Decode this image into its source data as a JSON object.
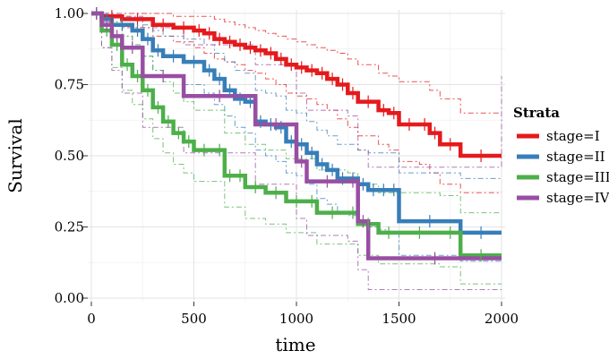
{
  "chart_data": {
    "type": "line",
    "xlabel": "time",
    "ylabel": "Survival",
    "xlim": [
      0,
      2000
    ],
    "ylim": [
      0,
      1
    ],
    "x_ticks": [
      "0",
      "500",
      "1000",
      "1500",
      "2000"
    ],
    "y_ticks": [
      "0.00",
      "0.25",
      "0.50",
      "0.75",
      "1.00"
    ],
    "grid": true,
    "legend": {
      "title": "Strata",
      "position": "right"
    },
    "series": [
      {
        "name": "stage=I",
        "color": "#e41a1c",
        "x": [
          0,
          50,
          150,
          300,
          400,
          500,
          550,
          600,
          650,
          700,
          750,
          800,
          850,
          900,
          950,
          1000,
          1050,
          1100,
          1150,
          1200,
          1250,
          1300,
          1400,
          1450,
          1500,
          1600,
          1650,
          1700,
          1800,
          2000
        ],
        "y": [
          1.0,
          0.99,
          0.98,
          0.96,
          0.95,
          0.94,
          0.93,
          0.91,
          0.9,
          0.89,
          0.88,
          0.87,
          0.86,
          0.84,
          0.82,
          0.81,
          0.8,
          0.79,
          0.77,
          0.75,
          0.72,
          0.69,
          0.66,
          0.65,
          0.61,
          0.61,
          0.58,
          0.54,
          0.5,
          0.5
        ],
        "lower": [
          1.0,
          0.97,
          0.95,
          0.92,
          0.9,
          0.88,
          0.86,
          0.84,
          0.83,
          0.82,
          0.8,
          0.79,
          0.77,
          0.75,
          0.72,
          0.71,
          0.7,
          0.68,
          0.66,
          0.63,
          0.6,
          0.57,
          0.54,
          0.52,
          0.48,
          0.47,
          0.44,
          0.4,
          0.37,
          0.37
        ],
        "upper": [
          1.0,
          1.0,
          1.0,
          1.0,
          0.99,
          0.99,
          0.99,
          0.98,
          0.97,
          0.96,
          0.95,
          0.94,
          0.93,
          0.92,
          0.91,
          0.9,
          0.89,
          0.88,
          0.87,
          0.86,
          0.84,
          0.82,
          0.79,
          0.78,
          0.76,
          0.76,
          0.73,
          0.7,
          0.65,
          0.65
        ]
      },
      {
        "name": "stage=II",
        "color": "#377eb8",
        "x": [
          0,
          50,
          100,
          200,
          250,
          300,
          350,
          450,
          550,
          600,
          650,
          700,
          750,
          800,
          850,
          900,
          950,
          1000,
          1050,
          1100,
          1150,
          1200,
          1250,
          1300,
          1350,
          1400,
          1450,
          1500,
          1800,
          2000
        ],
        "y": [
          1.0,
          0.98,
          0.96,
          0.94,
          0.91,
          0.87,
          0.85,
          0.83,
          0.8,
          0.77,
          0.73,
          0.7,
          0.69,
          0.62,
          0.61,
          0.6,
          0.55,
          0.54,
          0.51,
          0.47,
          0.45,
          0.42,
          0.42,
          0.4,
          0.38,
          0.38,
          0.38,
          0.27,
          0.23,
          0.23
        ],
        "lower": [
          1.0,
          0.96,
          0.92,
          0.89,
          0.85,
          0.8,
          0.78,
          0.75,
          0.72,
          0.68,
          0.64,
          0.6,
          0.58,
          0.52,
          0.5,
          0.48,
          0.44,
          0.43,
          0.4,
          0.35,
          0.33,
          0.3,
          0.29,
          0.27,
          0.25,
          0.24,
          0.23,
          0.15,
          0.13,
          0.13
        ],
        "upper": [
          1.0,
          1.0,
          0.99,
          0.98,
          0.96,
          0.94,
          0.92,
          0.91,
          0.89,
          0.86,
          0.83,
          0.8,
          0.79,
          0.73,
          0.72,
          0.71,
          0.66,
          0.65,
          0.62,
          0.59,
          0.57,
          0.54,
          0.54,
          0.52,
          0.51,
          0.51,
          0.51,
          0.44,
          0.42,
          0.42
        ]
      },
      {
        "name": "stage=III",
        "color": "#4daf4a",
        "x": [
          0,
          50,
          100,
          150,
          200,
          250,
          300,
          350,
          400,
          450,
          500,
          600,
          650,
          700,
          750,
          850,
          950,
          1050,
          1100,
          1250,
          1300,
          1400,
          1500,
          1700,
          1800,
          2000
        ],
        "y": [
          1.0,
          0.94,
          0.89,
          0.82,
          0.78,
          0.73,
          0.67,
          0.62,
          0.58,
          0.55,
          0.52,
          0.52,
          0.43,
          0.43,
          0.39,
          0.37,
          0.34,
          0.34,
          0.3,
          0.3,
          0.26,
          0.23,
          0.23,
          0.23,
          0.15,
          0.15
        ],
        "lower": [
          1.0,
          0.88,
          0.81,
          0.73,
          0.68,
          0.63,
          0.56,
          0.51,
          0.47,
          0.44,
          0.41,
          0.41,
          0.32,
          0.32,
          0.28,
          0.26,
          0.23,
          0.23,
          0.19,
          0.19,
          0.15,
          0.12,
          0.12,
          0.11,
          0.05,
          0.05
        ],
        "upper": [
          1.0,
          0.99,
          0.97,
          0.92,
          0.89,
          0.85,
          0.8,
          0.76,
          0.72,
          0.69,
          0.66,
          0.66,
          0.58,
          0.58,
          0.54,
          0.52,
          0.49,
          0.49,
          0.45,
          0.44,
          0.4,
          0.37,
          0.37,
          0.36,
          0.3,
          0.3
        ]
      },
      {
        "name": "stage=IV",
        "color": "#984ea3",
        "x": [
          0,
          50,
          100,
          150,
          250,
          450,
          800,
          1000,
          1050,
          1250,
          1300,
          1350,
          2000
        ],
        "y": [
          1.0,
          0.96,
          0.92,
          0.88,
          0.78,
          0.71,
          0.61,
          0.48,
          0.41,
          0.41,
          0.27,
          0.14,
          0.14
        ],
        "lower": [
          1.0,
          0.88,
          0.8,
          0.72,
          0.6,
          0.51,
          0.4,
          0.28,
          0.22,
          0.2,
          0.1,
          0.03,
          0.03
        ],
        "upper": [
          1.0,
          1.0,
          1.0,
          0.99,
          0.95,
          0.89,
          0.82,
          0.72,
          0.66,
          0.64,
          0.52,
          0.46,
          0.78
        ]
      }
    ]
  }
}
